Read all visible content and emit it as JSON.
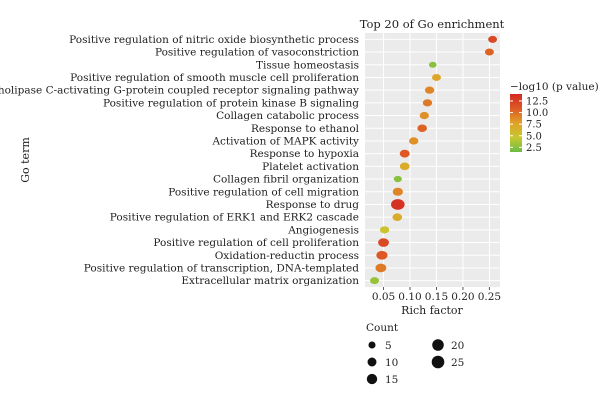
{
  "chart_data": {
    "type": "scatter",
    "title": "Top 20 of Go enrichment",
    "xlabel": "Rich factor",
    "ylabel": "Go term",
    "xlim": [
      0.015,
      0.27
    ],
    "xticks": [
      0.05,
      0.1,
      0.15,
      0.2,
      0.25
    ],
    "xtick_labels": [
      "0.05",
      "0.10",
      "0.15",
      "0.20",
      "0.25"
    ],
    "grid": true,
    "terms": [
      "Positive regulation of nitric oxide biosynthetic process",
      "Positive regulation of vasoconstriction",
      "Tissue homeostasis",
      "Positive regulation of smooth muscle cell proliferation",
      "Phospholipase C-activating G-protein coupled receptor signaling pathway",
      "Positive regulation of protein kinase B signaling",
      "Collagen catabolic process",
      "Response to ethanol",
      "Activation of MAPK activity",
      "Response to hypoxia",
      "Platelet activation",
      "Collagen fibril organization",
      "Positive regulation of cell migration",
      "Response to drug",
      "Positive regulation of ERK1 and ERK2 cascade",
      "Angiogenesis",
      "Positive regulation of cell proliferation",
      "Oxidation-reductin process",
      "Positive regulation of transcription, DNA-templated",
      "Extracellular matrix organization"
    ],
    "rich_factor": [
      0.256,
      0.25,
      0.143,
      0.15,
      0.137,
      0.133,
      0.127,
      0.123,
      0.107,
      0.09,
      0.09,
      0.077,
      0.077,
      0.077,
      0.076,
      0.052,
      0.05,
      0.047,
      0.045,
      0.033
    ],
    "count": [
      8,
      8,
      5,
      8,
      9,
      9,
      9,
      10,
      9,
      11,
      10,
      6,
      12,
      25,
      10,
      9,
      14,
      15,
      14,
      8
    ],
    "neg_log10_p": [
      12.0,
      10.5,
      2.5,
      7.5,
      9.0,
      9.5,
      8.5,
      10.5,
      8.5,
      11.0,
      7.0,
      2.5,
      9.0,
      13.5,
      7.0,
      5.0,
      12.0,
      11.0,
      9.5,
      3.0
    ],
    "color_legend": {
      "title": "−log10 (p value)",
      "ticks": [
        "12.5",
        "10.0",
        "7.5",
        "5.0",
        "2.5"
      ],
      "tick_values": [
        12.5,
        10.0,
        7.5,
        5.0,
        2.5
      ],
      "range": [
        1.5,
        14.0
      ],
      "colors": [
        "#6cbd45",
        "#c7c72f",
        "#e0a228",
        "#dd5a25",
        "#d42a24"
      ]
    },
    "size_legend": {
      "title": "Count",
      "items": [
        {
          "label": "5",
          "value": 5
        },
        {
          "label": "10",
          "value": 10
        },
        {
          "label": "15",
          "value": 15
        },
        {
          "label": "20",
          "value": 20
        },
        {
          "label": "25",
          "value": 25
        }
      ]
    },
    "panel_color": "#ebebeb",
    "grid_color": "#ffffff"
  }
}
